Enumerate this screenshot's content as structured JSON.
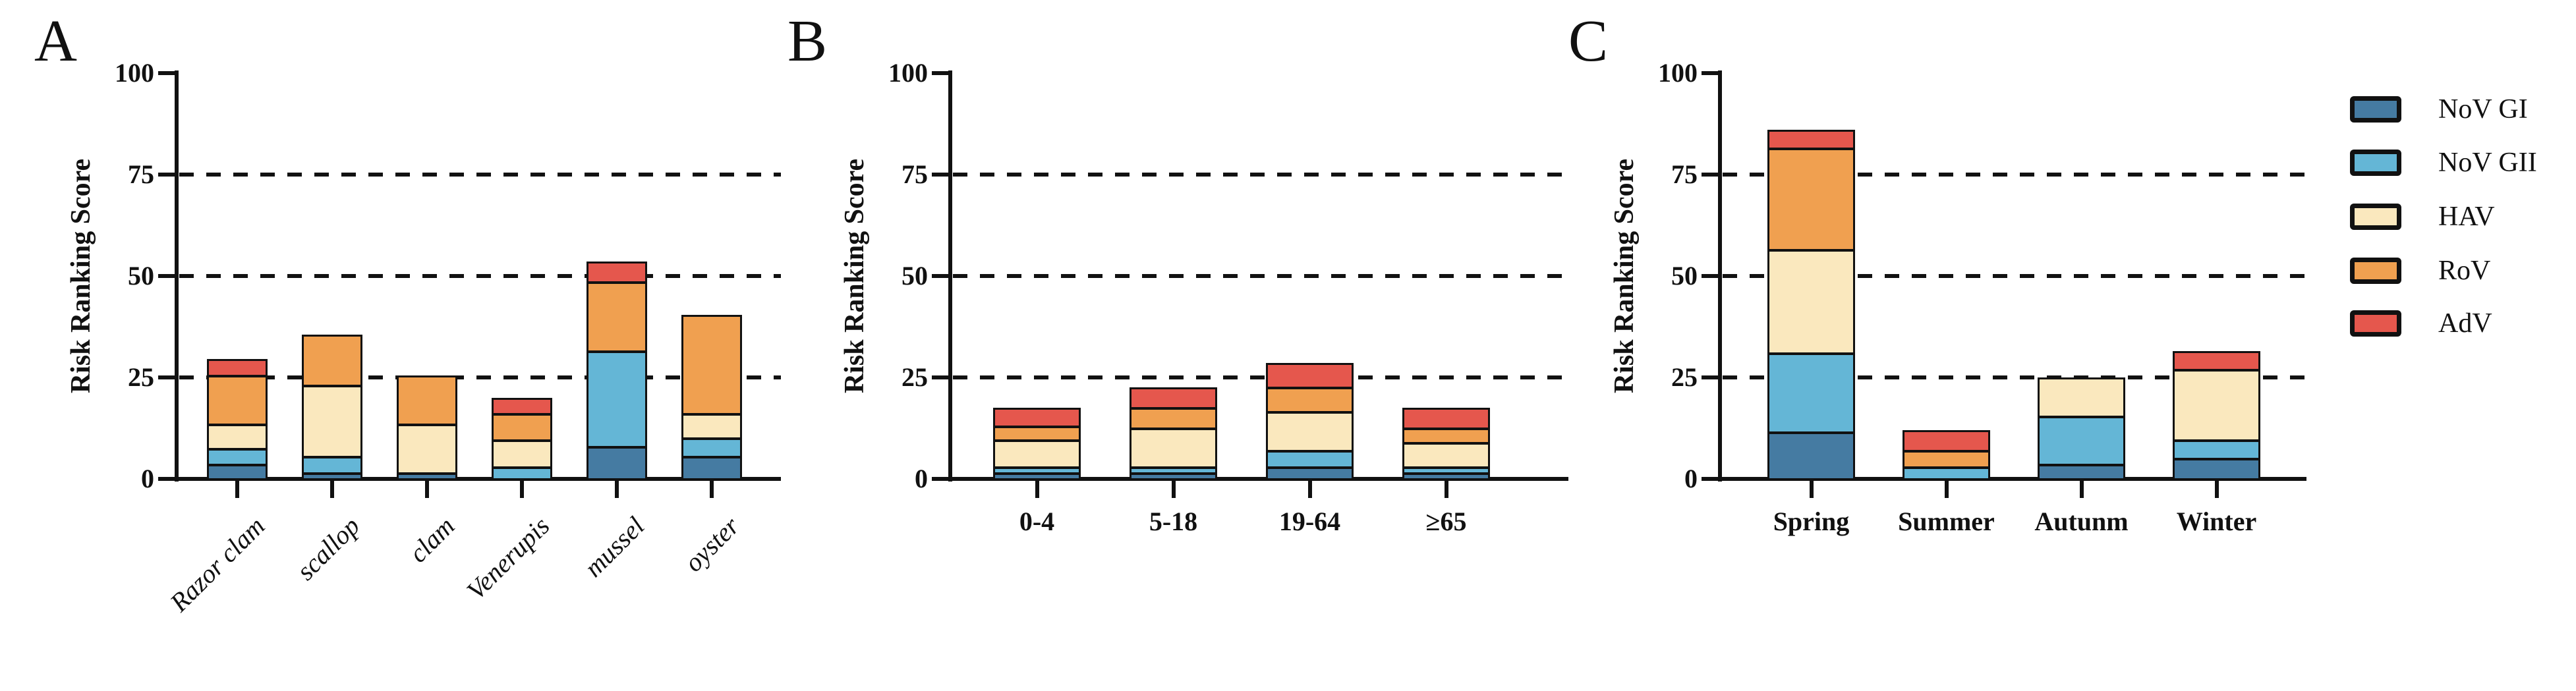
{
  "axis": {
    "ylabel": "Risk Ranking Score",
    "yticks": [
      0,
      25,
      50,
      75,
      100
    ],
    "gridlines": [
      25,
      50,
      75
    ],
    "ylim": [
      0,
      100
    ],
    "grid_style": "dashed"
  },
  "legend": {
    "position": "right",
    "items": [
      {
        "label": "NoV GI",
        "color": "#457BA2"
      },
      {
        "label": "NoV GII",
        "color": "#64B6D6"
      },
      {
        "label": "HAV",
        "color": "#FAE8BE"
      },
      {
        "label": "RoV",
        "color": "#F0A050"
      },
      {
        "label": "AdV",
        "color": "#E5574D"
      }
    ]
  },
  "chart_data": [
    {
      "type": "bar",
      "stacked": true,
      "panel_label": "A",
      "ylabel": "Risk Ranking Score",
      "ylim": [
        0,
        100
      ],
      "yticks": [
        0,
        25,
        50,
        75,
        100
      ],
      "gridlines": [
        25,
        50,
        75
      ],
      "categories": [
        "Razor clam",
        "scallop",
        "clam",
        "Venerupis",
        "mussel",
        "oyster"
      ],
      "series": [
        {
          "name": "NoV GI",
          "color": "#457BA2",
          "values": [
            3.5,
            1.5,
            1.5,
            0,
            8,
            5.5
          ]
        },
        {
          "name": "NoV GII",
          "color": "#64B6D6",
          "values": [
            4,
            4,
            0,
            3,
            23.5,
            4.5
          ]
        },
        {
          "name": "HAV",
          "color": "#FAE8BE",
          "values": [
            6,
            17.5,
            12,
            6.5,
            0,
            6
          ]
        },
        {
          "name": "RoV",
          "color": "#F0A050",
          "values": [
            12,
            12.5,
            12,
            6.5,
            17,
            24.5
          ]
        },
        {
          "name": "AdV",
          "color": "#E5574D",
          "values": [
            4,
            0,
            0,
            4,
            5,
            0
          ]
        }
      ],
      "totals": [
        29.5,
        35.5,
        25.5,
        20,
        53.5,
        40.5
      ]
    },
    {
      "type": "bar",
      "stacked": true,
      "panel_label": "B",
      "ylabel": "Risk Ranking Score",
      "ylim": [
        0,
        100
      ],
      "yticks": [
        0,
        25,
        50,
        75,
        100
      ],
      "gridlines": [
        25,
        50,
        75
      ],
      "categories": [
        "0-4",
        "5-18",
        "19-64",
        "≥65"
      ],
      "series": [
        {
          "name": "NoV GI",
          "color": "#457BA2",
          "values": [
            1.5,
            1.5,
            3,
            1.5
          ]
        },
        {
          "name": "NoV GII",
          "color": "#64B6D6",
          "values": [
            1.5,
            1.5,
            4,
            1.5
          ]
        },
        {
          "name": "HAV",
          "color": "#FAE8BE",
          "values": [
            6.5,
            9.5,
            9.5,
            6
          ]
        },
        {
          "name": "RoV",
          "color": "#F0A050",
          "values": [
            3.5,
            5,
            6,
            3.5
          ]
        },
        {
          "name": "AdV",
          "color": "#E5574D",
          "values": [
            4.5,
            5,
            6,
            5
          ]
        }
      ],
      "totals": [
        17.5,
        22.5,
        28.5,
        17.5
      ]
    },
    {
      "type": "bar",
      "stacked": true,
      "panel_label": "C",
      "ylabel": "Risk Ranking Score",
      "ylim": [
        0,
        100
      ],
      "yticks": [
        0,
        25,
        50,
        75,
        100
      ],
      "gridlines": [
        25,
        50,
        75
      ],
      "categories": [
        "Spring",
        "Summer",
        "Autunm",
        "Winter"
      ],
      "series": [
        {
          "name": "NoV GI",
          "color": "#457BA2",
          "values": [
            11.5,
            0,
            3.5,
            5
          ]
        },
        {
          "name": "NoV GII",
          "color": "#64B6D6",
          "values": [
            19.5,
            3,
            12,
            4.5
          ]
        },
        {
          "name": "HAV",
          "color": "#FAE8BE",
          "values": [
            25.5,
            0,
            9.5,
            17.5
          ]
        },
        {
          "name": "RoV",
          "color": "#F0A050",
          "values": [
            25,
            4,
            0,
            0
          ]
        },
        {
          "name": "AdV",
          "color": "#E5574D",
          "values": [
            4.5,
            5,
            0,
            4.5
          ]
        }
      ],
      "totals": [
        86,
        12,
        25,
        31.5
      ]
    }
  ]
}
